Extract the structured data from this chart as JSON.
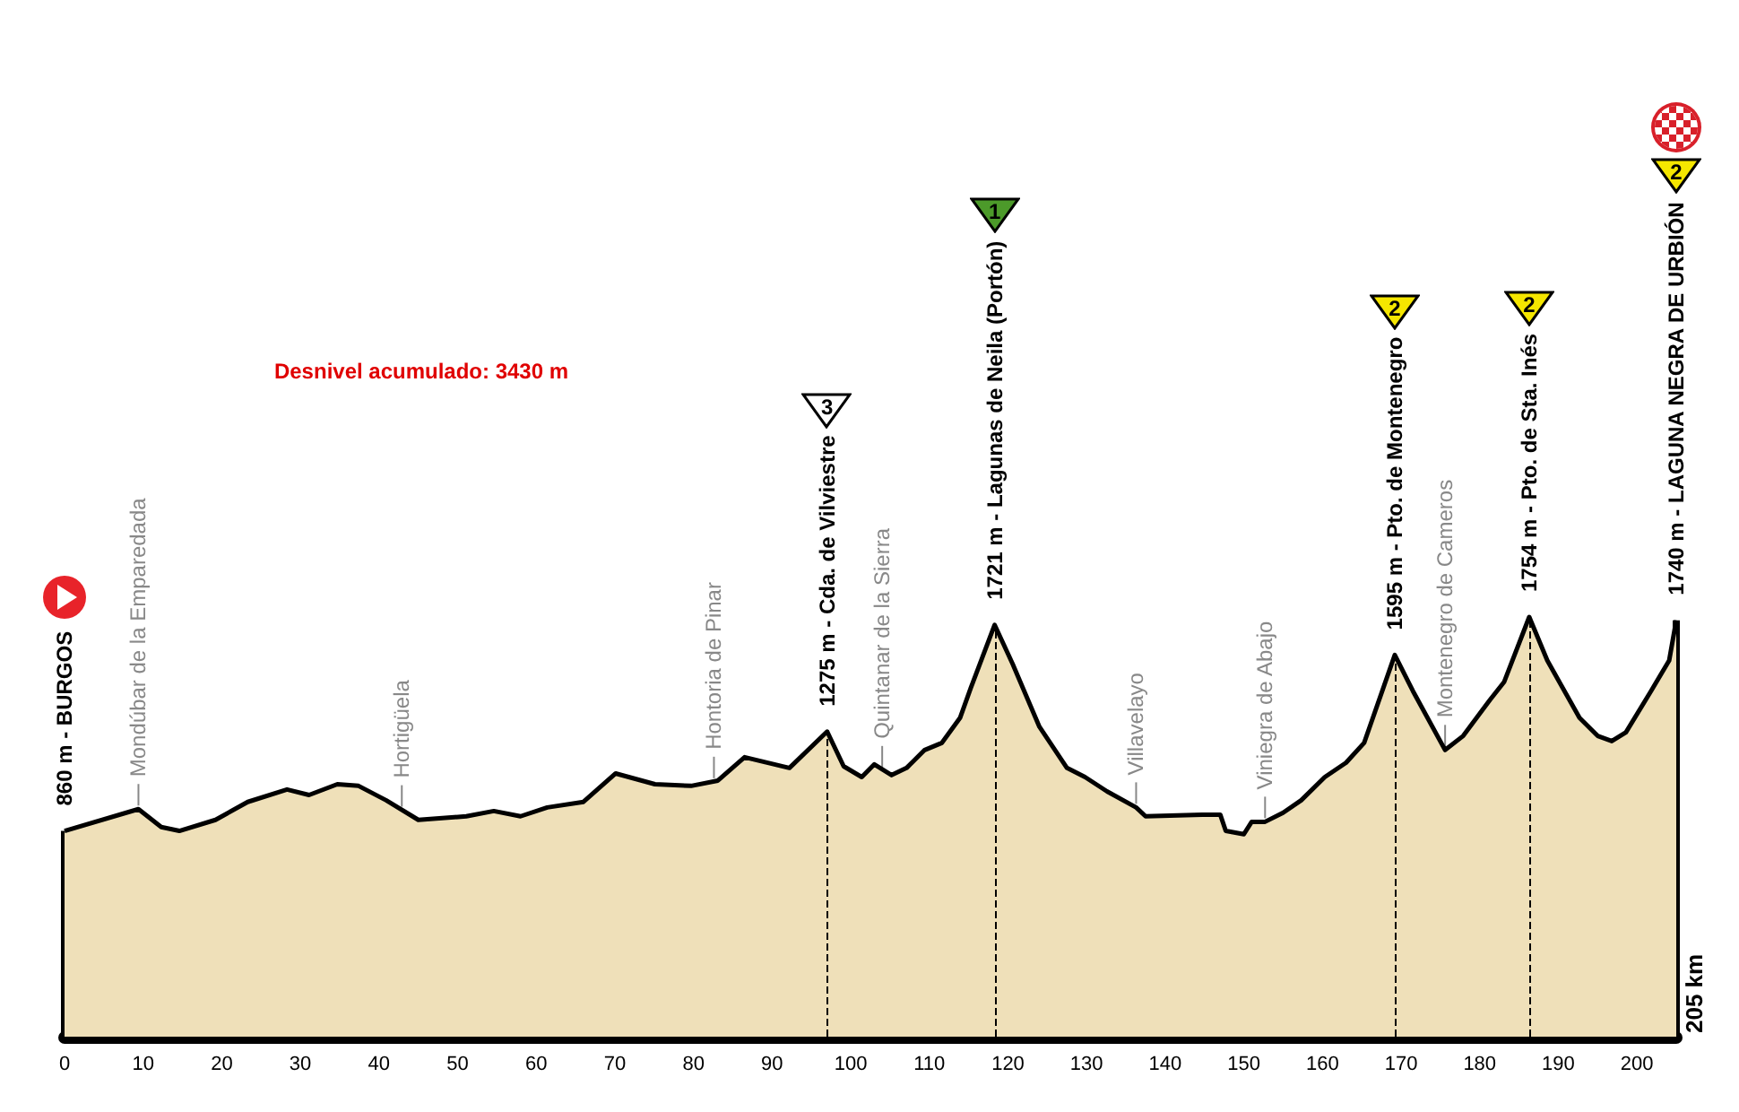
{
  "chart_data": {
    "type": "area",
    "x": [
      0,
      9.4,
      12.3,
      14.6,
      19.2,
      23.3,
      28.3,
      31.1,
      34.7,
      37.4,
      40.9,
      45,
      51.1,
      54.6,
      58,
      61.4,
      66,
      70.1,
      75.1,
      79.7,
      83.1,
      86.5,
      92.2,
      97,
      99.1,
      101.4,
      103,
      105.2,
      107.1,
      109.4,
      111.6,
      113.9,
      115.3,
      118.3,
      120.6,
      124,
      127.5,
      129.8,
      132.6,
      136.3,
      137.5,
      144.7,
      147,
      147.7,
      150,
      151,
      152.7,
      155,
      157.3,
      160.3,
      163,
      165.3,
      169.2,
      171.5,
      175.6,
      177.9,
      181.3,
      183.1,
      186.3,
      188.6,
      192.7,
      195,
      196.8,
      198.6,
      201.8,
      204.1,
      205
    ],
    "values": [
      860,
      951,
      876,
      860,
      906,
      981,
      1033,
      1010,
      1055,
      1048,
      988,
      906,
      921,
      943,
      921,
      958,
      981,
      1100,
      1055,
      1048,
      1070,
      1168,
      1123,
      1275,
      1130,
      1085,
      1138,
      1093,
      1123,
      1198,
      1228,
      1332,
      1460,
      1721,
      1557,
      1295,
      1123,
      1085,
      1025,
      958,
      921,
      928,
      928,
      860,
      846,
      898,
      898,
      936,
      988,
      1085,
      1145,
      1228,
      1595,
      1445,
      1198,
      1257,
      1407,
      1482,
      1754,
      1572,
      1332,
      1257,
      1235,
      1272,
      1445,
      1572,
      1740
    ],
    "value_labels": [
      "860 m - BURGOS",
      null,
      null,
      null,
      null,
      null,
      null,
      null,
      null,
      null,
      null,
      null,
      null,
      null,
      null,
      null,
      null,
      null,
      null,
      null,
      null,
      null,
      null,
      "1275 m - Cda. de Vilviestre",
      null,
      null,
      null,
      null,
      null,
      null,
      null,
      null,
      null,
      "1721 m - Lagunas de Neila (Portón)",
      null,
      null,
      null,
      null,
      null,
      null,
      null,
      null,
      null,
      null,
      null,
      null,
      null,
      null,
      null,
      null,
      null,
      null,
      "1595 m - Pto. de Montenegro",
      null,
      null,
      null,
      null,
      null,
      "1754 m - Pto. de Sta. Inés",
      null,
      null,
      null,
      null,
      null,
      null,
      null,
      "1740 m - LAGUNA NEGRA DE URBIÓN"
    ],
    "color": "#efe0b9",
    "xlim": [
      0,
      205
    ],
    "xticks": [
      0,
      10,
      20,
      30,
      40,
      50,
      60,
      70,
      80,
      90,
      100,
      110,
      120,
      130,
      140,
      150,
      160,
      170,
      180,
      190,
      200
    ],
    "tick_labels": "x",
    "grid": false,
    "ref_lines": [
      {
        "axis": "x",
        "value": 97,
        "color": "#000000",
        "line_style": "dashed"
      },
      {
        "axis": "x",
        "value": 118.3,
        "color": "#000000",
        "line_style": "dashed"
      },
      {
        "axis": "x",
        "value": 169.2,
        "color": "#000000",
        "line_style": "dashed"
      },
      {
        "axis": "x",
        "value": 186.3,
        "color": "#000000",
        "line_style": "dashed"
      }
    ],
    "annotations": [
      "Desnivel acumulado: 3430 m",
      "205 km",
      "3",
      "1",
      "2",
      "2",
      "2",
      {
        "text": "Mondúbar de la Emparedada",
        "x": 9.4,
        "y": 951
      },
      {
        "text": "Hortigüela",
        "x": 42.9,
        "y": 946
      },
      {
        "text": "Hontoria de Pinar",
        "x": 82.6,
        "y": 1065
      },
      {
        "text": "Quintanar de la Sierra",
        "x": 104,
        "y": 1110
      },
      {
        "text": "Villavelayo",
        "x": 136.3,
        "y": 958
      },
      {
        "text": "Viniegra de Abajo",
        "x": 152.7,
        "y": 898
      },
      {
        "text": "Montenegro de Cameros",
        "x": 175.6,
        "y": 1198
      }
    ]
  }
}
